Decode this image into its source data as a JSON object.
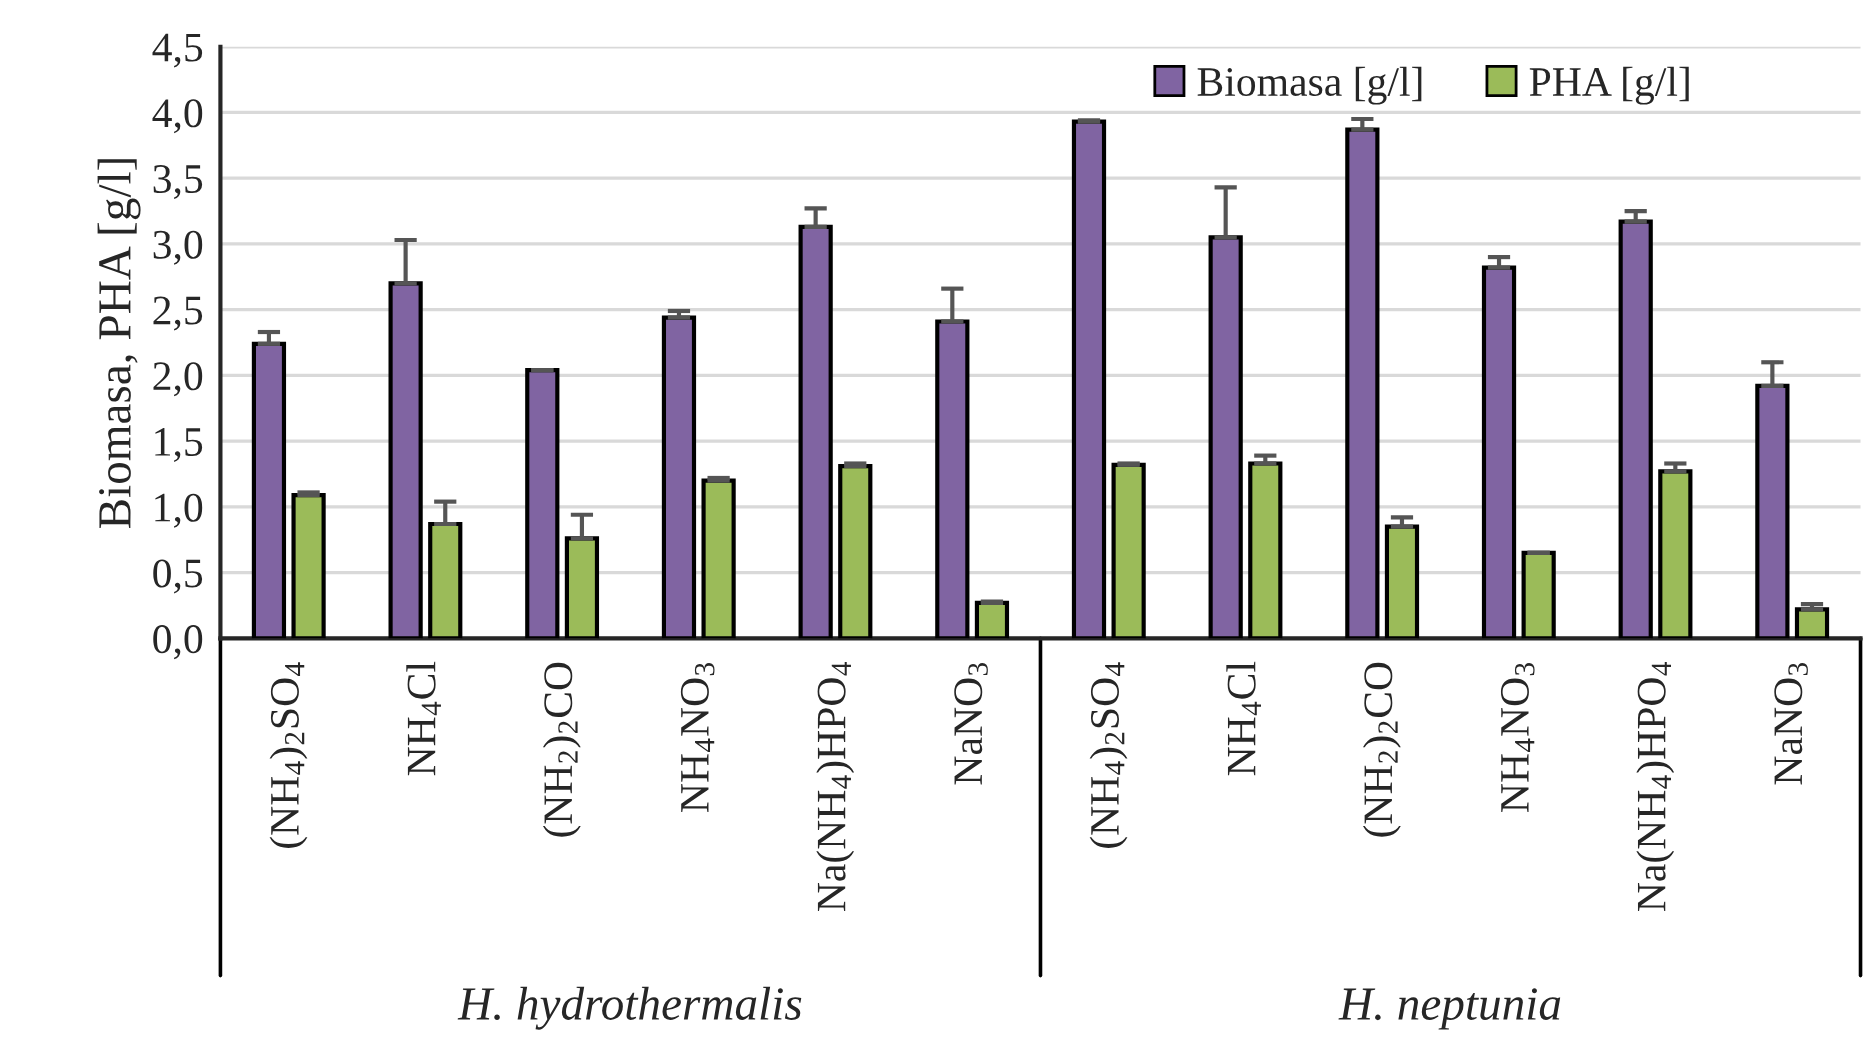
{
  "chart_data": {
    "type": "bar",
    "ylabel": "Biomasa, PHA [g/l]",
    "categories": [
      "(NH$_{4}$)$_{2}$SO$_{4}$",
      "NH$_{4}$Cl",
      "(NH$_{2}$)$_{2}$CO",
      "NH$_{4}$NO$_{3}$",
      "Na(NH$_{4}$)HPO$_{4}$",
      "NaNO$_{3}$",
      "(NH$_{4}$)$_{2}$SO$_{4}$",
      "NH$_{4}$Cl",
      "(NH$_{2}$)$_{2}$CO",
      "NH$_{4}$NO$_{3}$",
      "Na(NH$_{4}$)HPO$_{4}$",
      "NaNO$_{3}$"
    ],
    "series": [
      {
        "name": "Biomasa [g/l]",
        "color": "#8064a2",
        "values": [
          2.24,
          2.7,
          2.04,
          2.44,
          3.13,
          2.41,
          3.93,
          3.05,
          3.87,
          2.82,
          3.17,
          1.92
        ],
        "errors": [
          0.09,
          0.33,
          0,
          0.05,
          0.14,
          0.25,
          0.01,
          0.38,
          0.08,
          0.08,
          0.08,
          0.18
        ]
      },
      {
        "name": "PHA [g/l]",
        "color": "#9bbb59",
        "values": [
          1.09,
          0.87,
          0.76,
          1.2,
          1.31,
          0.27,
          1.32,
          1.33,
          0.85,
          0.65,
          1.27,
          0.22
        ],
        "errors": [
          0.02,
          0.17,
          0.18,
          0.02,
          0.02,
          0.01,
          0.01,
          0.06,
          0.07,
          0,
          0.06,
          0.04
        ]
      }
    ],
    "ylim": [
      0,
      4.5
    ],
    "yticks": [
      {
        "value": 0,
        "label": "0,0"
      },
      {
        "value": 0.5,
        "label": "0,5"
      },
      {
        "value": 1,
        "label": "1,0"
      },
      {
        "value": 1.5,
        "label": "1,5"
      },
      {
        "value": 2,
        "label": "2,0"
      },
      {
        "value": 2.5,
        "label": "2,5"
      },
      {
        "value": 3,
        "label": "3,0"
      },
      {
        "value": 3.5,
        "label": "3,5"
      },
      {
        "value": 4,
        "label": "4,0"
      },
      {
        "value": 4.5,
        "label": "4,5"
      }
    ],
    "grid": "y",
    "legend": "top right",
    "annotations": [
      "H. hydrothermalis",
      "H. neptunia"
    ]
  }
}
